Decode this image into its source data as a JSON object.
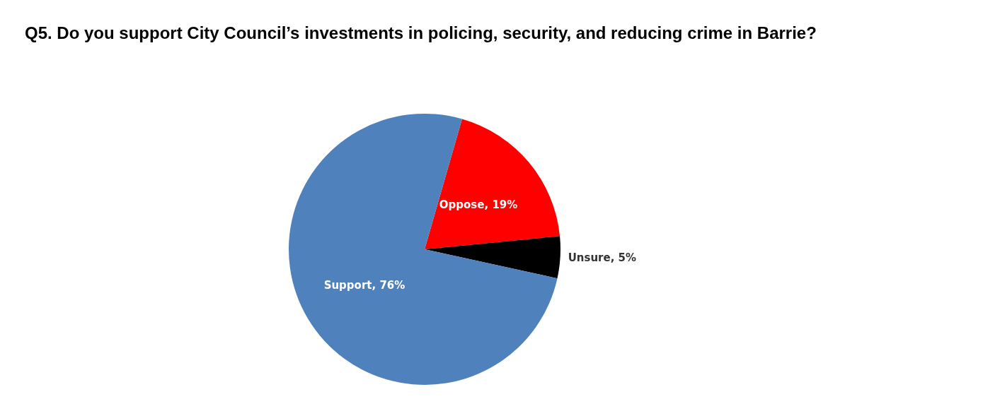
{
  "chart_data": {
    "type": "pie",
    "title": "Q5. Do you support City Council’s investments in policing, security, and reducing crime in Barrie?",
    "categories": [
      "Oppose",
      "Unsure",
      "Support"
    ],
    "values": [
      19,
      5,
      76
    ],
    "colors": [
      "#ff0000",
      "#000000",
      "#4f81bd"
    ],
    "value_labels": [
      "19%",
      "5%",
      "76%"
    ],
    "legend": false
  }
}
